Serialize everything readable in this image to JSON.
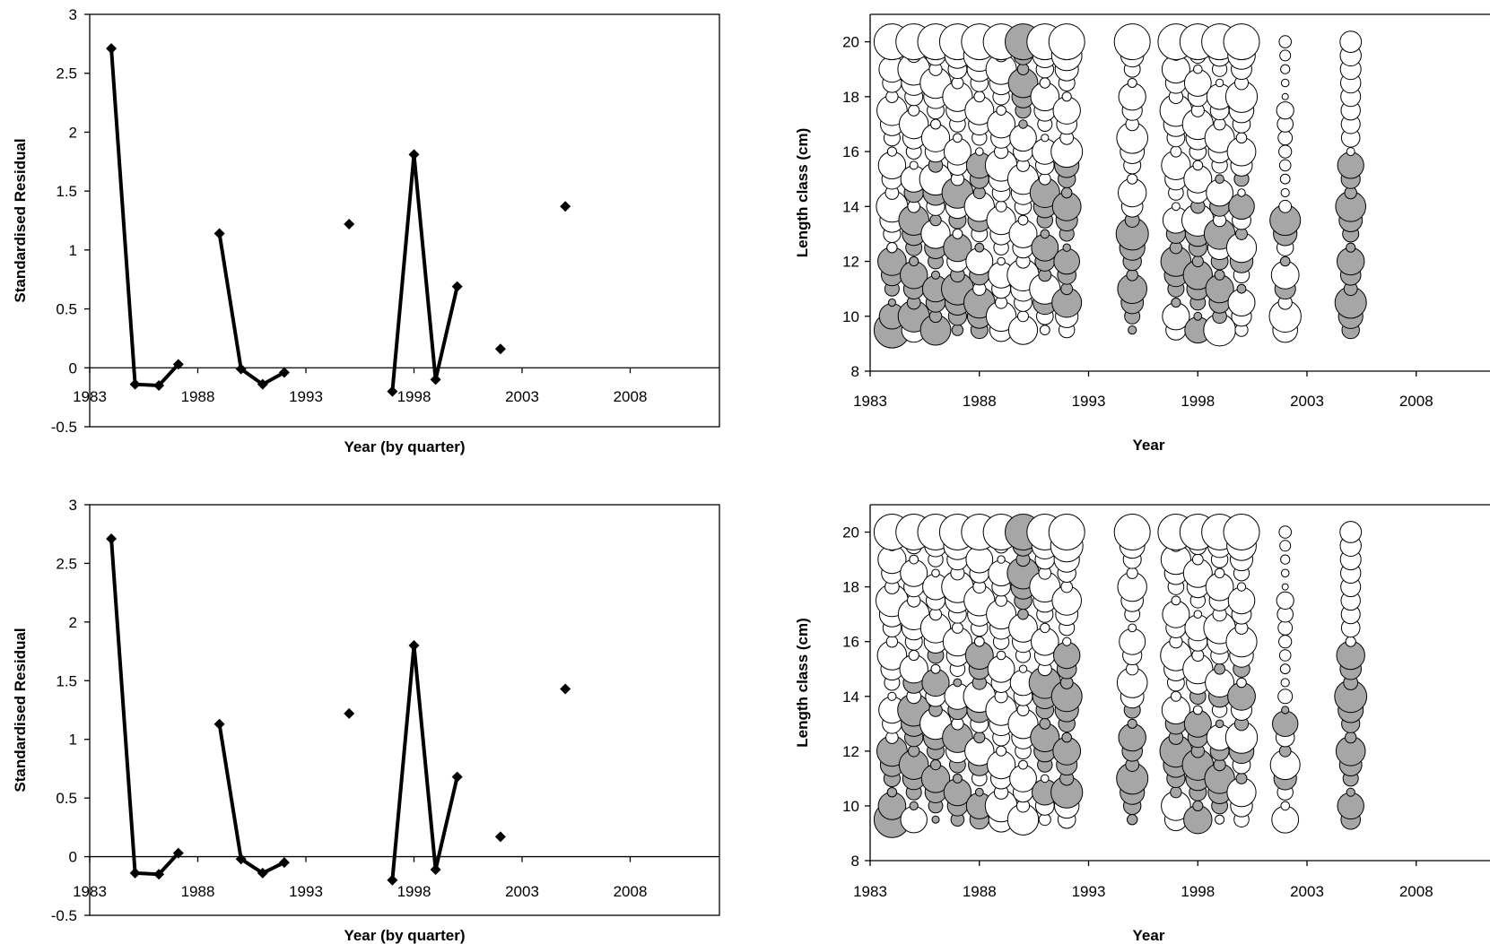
{
  "chart_data": [
    {
      "type": "line",
      "panel": "top-left",
      "xlabel": "Year (by quarter)",
      "ylabel": "Standardised Residual",
      "xlim": [
        1983,
        2012
      ],
      "ylim": [
        -0.5,
        3
      ],
      "xticks": [
        1983,
        1988,
        1993,
        1998,
        2003,
        2008
      ],
      "yticks": [
        3,
        2.5,
        2,
        1.5,
        1,
        0.5,
        0,
        -0.5
      ],
      "ytick_labels": [
        "3",
        "2.5",
        "2",
        "1.5",
        "1",
        "0.5",
        "0",
        "-0.5"
      ],
      "segments": [
        [
          [
            1984.0,
            2.71
          ],
          [
            1985.1,
            -0.14
          ],
          [
            1986.2,
            -0.15
          ],
          [
            1987.1,
            0.03
          ]
        ],
        [
          [
            1989.0,
            1.14
          ],
          [
            1990.0,
            -0.01
          ],
          [
            1991.0,
            -0.14
          ],
          [
            1992.0,
            -0.04
          ]
        ],
        [
          [
            1997.0,
            -0.2
          ],
          [
            1998.0,
            1.81
          ],
          [
            1999.0,
            -0.1
          ],
          [
            2000.0,
            0.69
          ]
        ]
      ],
      "points": [
        [
          1995.0,
          1.22
        ],
        [
          2002.0,
          0.16
        ],
        [
          2005.0,
          1.37
        ]
      ],
      "grid": false
    },
    {
      "type": "scatter",
      "panel": "top-right",
      "subtype": "bubble",
      "xlabel": "Year",
      "ylabel": "Length class  (cm)",
      "xlim": [
        1983,
        2011
      ],
      "ylim": [
        8,
        21
      ],
      "xticks": [
        1983,
        1988,
        1993,
        1998,
        2003,
        2008
      ],
      "yticks": [
        20,
        18,
        16,
        14,
        12,
        10,
        8
      ],
      "positive_color": "#ffffff",
      "negative_color": "#a6a6a6",
      "years": [
        1984,
        1985,
        1986,
        1987,
        1988,
        1989,
        1990,
        1991,
        1992,
        1995,
        1997,
        1998,
        1999,
        2000,
        2002,
        2005
      ],
      "grid": false
    },
    {
      "type": "line",
      "panel": "bottom-left",
      "xlabel": "Year (by quarter)",
      "ylabel": "Standardised Residual",
      "xlim": [
        1983,
        2012
      ],
      "ylim": [
        -0.5,
        3
      ],
      "xticks": [
        1983,
        1988,
        1993,
        1998,
        2003,
        2008
      ],
      "yticks": [
        3,
        2.5,
        2,
        1.5,
        1,
        0.5,
        0,
        -0.5
      ],
      "ytick_labels": [
        "3",
        "2.5",
        "2",
        "1.5",
        "1",
        "0.5",
        "0",
        "-0.5"
      ],
      "segments": [
        [
          [
            1984.0,
            2.71
          ],
          [
            1985.1,
            -0.14
          ],
          [
            1986.2,
            -0.15
          ],
          [
            1987.1,
            0.03
          ]
        ],
        [
          [
            1989.0,
            1.13
          ],
          [
            1990.0,
            -0.02
          ],
          [
            1991.0,
            -0.14
          ],
          [
            1992.0,
            -0.05
          ]
        ],
        [
          [
            1997.0,
            -0.2
          ],
          [
            1998.0,
            1.8
          ],
          [
            1999.0,
            -0.11
          ],
          [
            2000.0,
            0.68
          ]
        ]
      ],
      "points": [
        [
          1995.0,
          1.22
        ],
        [
          2002.0,
          0.17
        ],
        [
          2005.0,
          1.43
        ]
      ],
      "grid": false
    },
    {
      "type": "scatter",
      "panel": "bottom-right",
      "subtype": "bubble",
      "xlabel": "Year",
      "ylabel": "Length class  (cm)",
      "xlim": [
        1983,
        2011
      ],
      "ylim": [
        8,
        21
      ],
      "xticks": [
        1983,
        1988,
        1993,
        1998,
        2003,
        2008
      ],
      "yticks": [
        20,
        18,
        16,
        14,
        12,
        10,
        8
      ],
      "positive_color": "#ffffff",
      "negative_color": "#a6a6a6",
      "years": [
        1984,
        1985,
        1986,
        1987,
        1988,
        1989,
        1990,
        1991,
        1992,
        1995,
        1997,
        1998,
        1999,
        2000,
        2002,
        2005
      ],
      "grid": false
    }
  ]
}
